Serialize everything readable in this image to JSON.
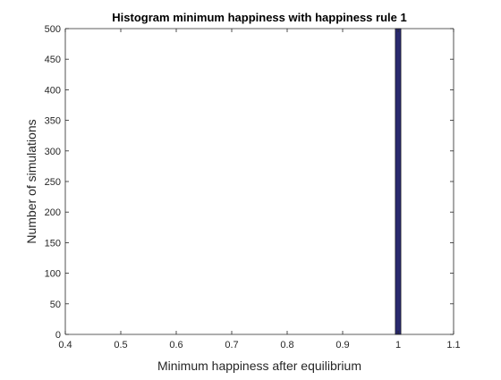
{
  "chart_data": {
    "type": "bar",
    "title": "Histogram minimum happiness with happiness rule 1",
    "xlabel": "Minimum happiness after equilibrium",
    "ylabel": "Number of simulations",
    "xlim": [
      0.4,
      1.1
    ],
    "ylim": [
      0,
      500
    ],
    "x_ticks": [
      "0.4",
      "0.5",
      "0.6",
      "0.7",
      "0.8",
      "0.9",
      "1",
      "1.1"
    ],
    "y_ticks": [
      "0",
      "50",
      "100",
      "150",
      "200",
      "250",
      "300",
      "350",
      "400",
      "450",
      "500"
    ],
    "bins": [
      {
        "x_start": 0.995,
        "x_end": 1.005,
        "count": 500
      }
    ],
    "bar_color": "#2a2a6e",
    "grid": false
  }
}
